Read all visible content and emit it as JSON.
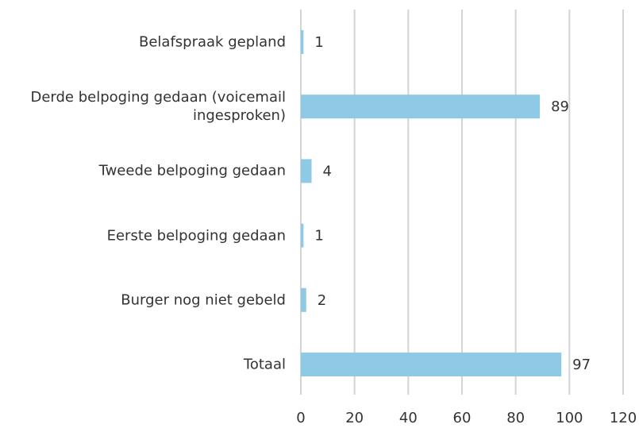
{
  "chart_data": {
    "type": "hbar",
    "categories": [
      "Belafspraak gepland",
      "Derde belpoging gedaan (voicemail ingesproken)",
      "Tweede belpoging gedaan",
      "Eerste belpoging gedaan",
      "Burger nog niet gebeld",
      "Totaal"
    ],
    "values": [
      1,
      89,
      4,
      1,
      2,
      97
    ],
    "color": "#8ecae6",
    "xlim": [
      0,
      120
    ],
    "xticks": [
      0,
      20,
      40,
      60,
      80,
      100,
      120
    ],
    "grid": true
  }
}
